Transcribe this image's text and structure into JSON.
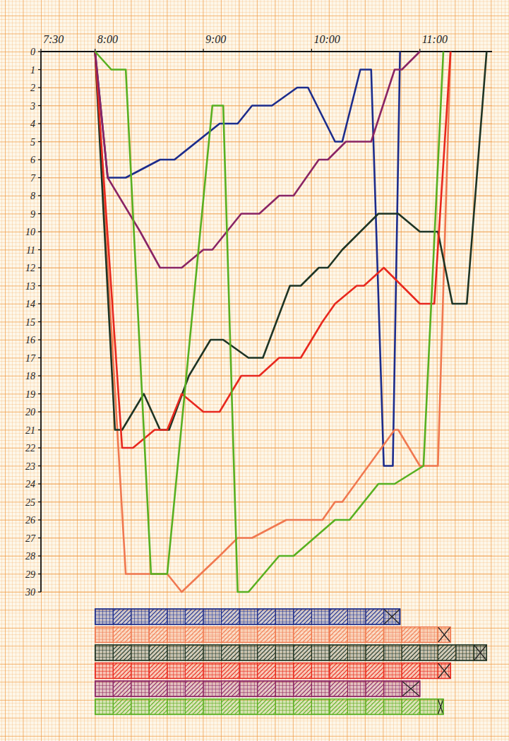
{
  "chart_data": {
    "type": "line",
    "grid": true,
    "xlim": [
      450,
      700
    ],
    "xticks": [
      {
        "value": 450,
        "label": "7:30"
      },
      {
        "value": 480,
        "label": "8:00"
      },
      {
        "value": 540,
        "label": "9:00"
      },
      {
        "value": 600,
        "label": "10:00"
      },
      {
        "value": 660,
        "label": "11:00"
      }
    ],
    "ylim": [
      0,
      30
    ],
    "yticks": [
      0,
      1,
      2,
      3,
      4,
      5,
      6,
      7,
      8,
      9,
      10,
      11,
      12,
      13,
      14,
      15,
      16,
      17,
      18,
      19,
      20,
      21,
      22,
      23,
      24,
      25,
      26,
      27,
      28,
      29,
      30
    ],
    "series": [
      {
        "color": "#1c2c8c",
        "x": [
          480,
          487,
          497,
          516,
          524,
          549,
          559,
          567,
          578,
          592,
          598,
          613,
          617,
          627,
          633,
          640,
          645,
          649
        ],
        "values": [
          0,
          7,
          7,
          6,
          6,
          4,
          4,
          3,
          3,
          2,
          2,
          5,
          5,
          1,
          1,
          23,
          23,
          0
        ]
      },
      {
        "color": "#f07850",
        "x": [
          480,
          497,
          520,
          528,
          549,
          559,
          567,
          586,
          606,
          613,
          617,
          646,
          648,
          660,
          670,
          677
        ],
        "values": [
          0,
          29,
          29,
          30,
          28,
          27,
          27,
          26,
          26,
          25,
          25,
          21,
          21,
          23,
          23,
          0
        ]
      },
      {
        "color": "#1e3424",
        "x": [
          480,
          491,
          495,
          507,
          516,
          521,
          532,
          544,
          551,
          565,
          573,
          588,
          594,
          604,
          609,
          617,
          637,
          648,
          660,
          670,
          678,
          686,
          697
        ],
        "values": [
          0,
          21,
          21,
          19,
          21,
          21,
          18,
          16,
          16,
          17,
          17,
          13,
          13,
          12,
          12,
          11,
          9,
          9,
          10,
          10,
          14,
          14,
          0
        ]
      },
      {
        "color": "#e8281e",
        "x": [
          480,
          495,
          501,
          513,
          520,
          528,
          540,
          549,
          561,
          571,
          582,
          594,
          606,
          613,
          625,
          629,
          640,
          660,
          668,
          677
        ],
        "values": [
          0,
          22,
          22,
          21,
          21,
          19,
          20,
          20,
          18,
          18,
          17,
          17,
          15,
          14,
          13,
          13,
          12,
          14,
          14,
          0
        ]
      },
      {
        "color": "#8a2464",
        "x": [
          480,
          487,
          505,
          516,
          528,
          540,
          545,
          561,
          571,
          582,
          590,
          604,
          609,
          619,
          633,
          646,
          650,
          660
        ],
        "values": [
          0,
          7,
          10,
          12,
          12,
          11,
          11,
          9,
          9,
          8,
          8,
          6,
          6,
          5,
          5,
          1,
          1,
          0
        ]
      },
      {
        "color": "#58b020",
        "x": [
          480,
          489,
          497,
          511,
          520,
          545,
          551,
          559,
          565,
          582,
          590,
          613,
          621,
          637,
          646,
          662,
          673
        ],
        "values": [
          0,
          1,
          1,
          29,
          29,
          3,
          3,
          30,
          30,
          28,
          28,
          26,
          26,
          24,
          24,
          23,
          0
        ]
      }
    ]
  }
}
